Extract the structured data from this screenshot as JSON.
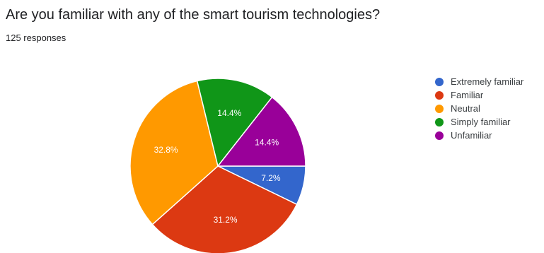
{
  "chart_data": {
    "type": "pie",
    "title": "Are you familiar with any of the smart tourism technologies?",
    "subtitle": "125 responses",
    "legend_position": "right",
    "slices": [
      {
        "label": "Extremely familiar",
        "value": 7.2,
        "value_label": "7.2%",
        "color": "#3366cc"
      },
      {
        "label": "Familiar",
        "value": 31.2,
        "value_label": "31.2%",
        "color": "#dc3912"
      },
      {
        "label": "Neutral",
        "value": 32.8,
        "value_label": "32.8%",
        "color": "#ff9900"
      },
      {
        "label": "Simply familiar",
        "value": 14.4,
        "value_label": "14.4%",
        "color": "#109618"
      },
      {
        "label": "Unfamiliar",
        "value": 14.4,
        "value_label": "14.4%",
        "color": "#990099"
      }
    ]
  }
}
